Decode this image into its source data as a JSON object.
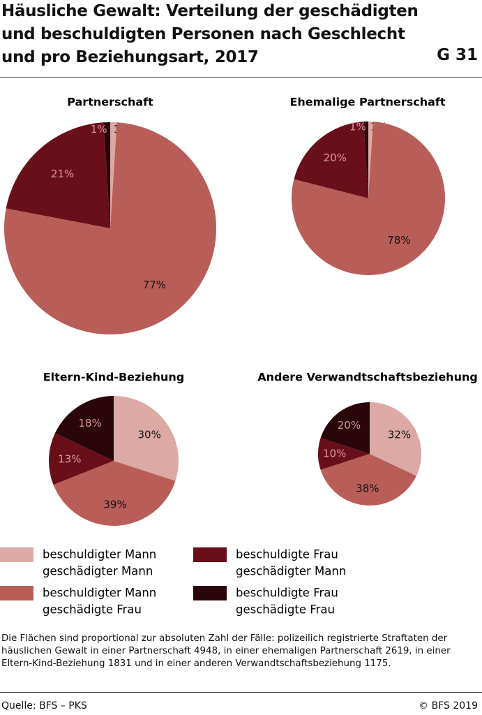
{
  "header": {
    "title": "Häusliche Gewalt: Verteilung der geschädigten und beschuldigten Personen nach Geschlecht und pro Beziehungsart, 2017",
    "code": "G 31"
  },
  "chart_data": [
    {
      "type": "pie",
      "title": "Partnerschaft",
      "values": [
        1,
        77,
        21,
        1
      ],
      "value_labels": [
        "1%",
        "77%",
        "21%",
        "1%"
      ]
    },
    {
      "type": "pie",
      "title": "Ehemalige Partnerschaft",
      "values": [
        1,
        78,
        20,
        1
      ],
      "value_labels": [
        "1%",
        "78%",
        "20%",
        "1%"
      ]
    },
    {
      "type": "pie",
      "title": "Eltern-Kind-Beziehung",
      "values": [
        30,
        39,
        13,
        18
      ],
      "value_labels": [
        "30%",
        "39%",
        "13%",
        "18%"
      ]
    },
    {
      "type": "pie",
      "title": "Andere Verwandtschaftsbeziehung",
      "values": [
        32,
        38,
        10,
        20
      ],
      "value_labels": [
        "32%",
        "38%",
        "10%",
        "20%"
      ]
    }
  ],
  "legend": [
    {
      "label": [
        "beschuldigter Mann",
        "geschädigter Mann"
      ],
      "color": "#dca9a4",
      "label_color": "#111111"
    },
    {
      "label": [
        "beschuldigter Mann",
        "geschädigte Frau"
      ],
      "color": "#b85d58",
      "label_color": "#111111"
    },
    {
      "label": [
        "beschuldigte Frau",
        "geschädigter Mann"
      ],
      "color": "#690f1a",
      "label_color": "#d9999b"
    },
    {
      "label": [
        "beschuldigte Frau",
        "geschädigte Frau"
      ],
      "color": "#2a0509",
      "label_color": "#d9999b"
    }
  ],
  "note": "Die Flächen sind proportional zur absoluten Zahl der Fälle: polizeilich registrierte Straftaten der häuslichen Gewalt in einer Partnerschaft 4948, in einer ehemaligen Partnerschaft 2619, in einer Eltern-Kind-Beziehung 1831 und in einer anderen Verwandtschaftsbeziehung 1175.",
  "footer": {
    "source": "Quelle: BFS – PKS",
    "copyright": "© BFS 2019"
  }
}
